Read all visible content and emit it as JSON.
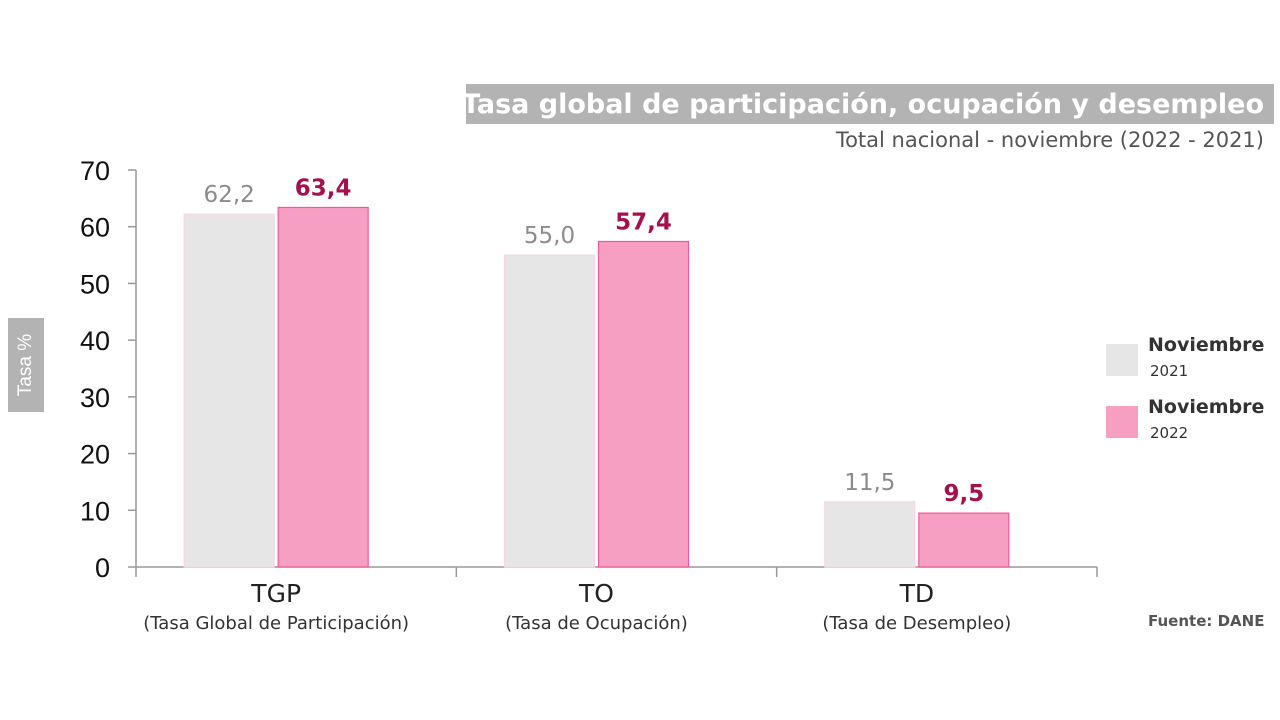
{
  "chart_data": {
    "type": "bar",
    "title": "Tasa global de participación, ocupación y desempleo",
    "subtitle": "Total nacional - noviembre (2022 - 2021)",
    "ylabel": "Tasa %",
    "xlabel": "",
    "ylim": [
      0,
      70
    ],
    "yticks": [
      "0",
      "10",
      "20",
      "30",
      "40",
      "50",
      "60",
      "70"
    ],
    "categories": [
      "TGP",
      "TO",
      "TD"
    ],
    "category_descriptions": [
      "(Tasa Global de Participación)",
      "(Tasa de Ocupación)",
      "(Tasa de Desempleo)"
    ],
    "series": [
      {
        "name": "Noviembre 2021",
        "legend_line1": "Noviembre",
        "legend_line2": "2021",
        "color": "#e6e6e6",
        "label_color": "#8c8c8c",
        "values": [
          62.2,
          55.0,
          11.5
        ],
        "labels": [
          "62,2",
          "55,0",
          "11,5"
        ]
      },
      {
        "name": "Noviembre 2022",
        "legend_line1": "Noviembre",
        "legend_line2": "2022",
        "color": "#f79fc3",
        "label_color": "#a6104f",
        "values": [
          63.4,
          57.4,
          9.5
        ],
        "labels": [
          "63,4",
          "57,4",
          "9,5"
        ]
      }
    ],
    "grid": false,
    "legend_position": "right",
    "source": "Fuente: DANE"
  }
}
